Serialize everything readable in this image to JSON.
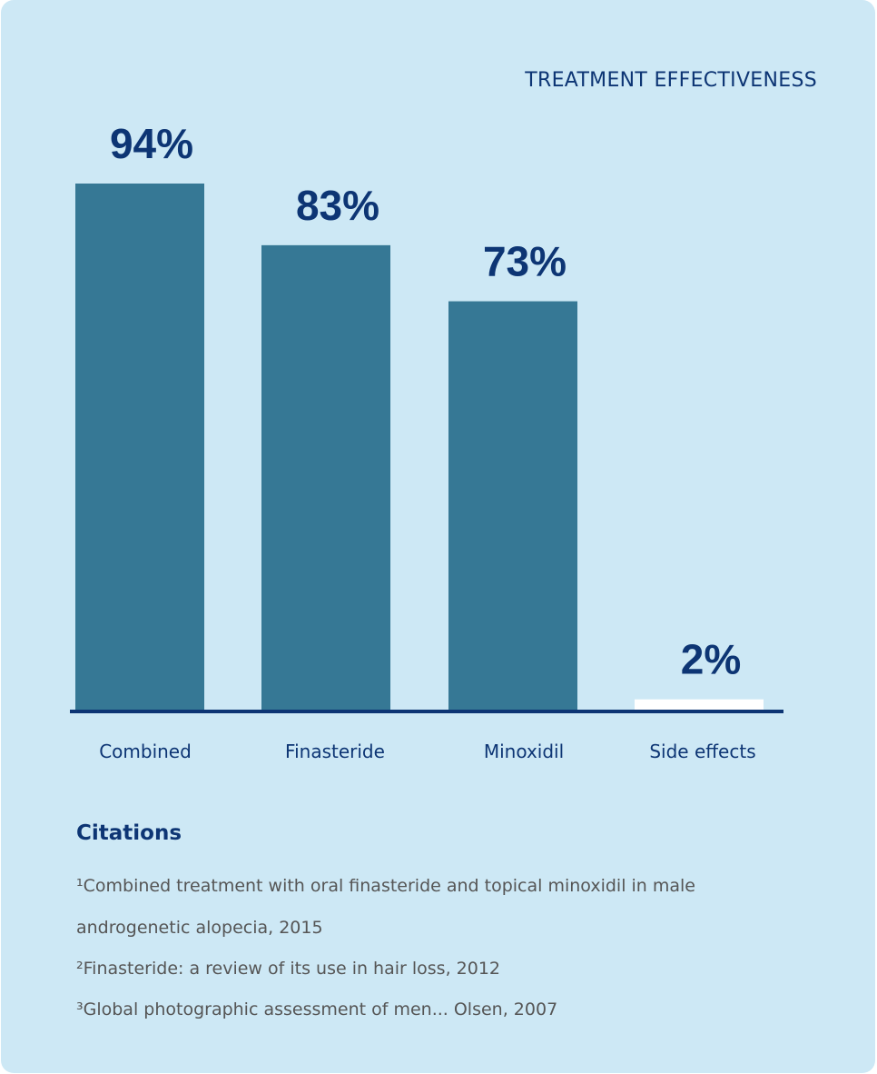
{
  "chart_data": {
    "type": "bar",
    "title": "TREATMENT EFFECTIVENESS",
    "categories": [
      "Combined",
      "Finasteride",
      "Minoxidil",
      "Side effects"
    ],
    "values": [
      94,
      83,
      73,
      2
    ],
    "data_labels": [
      "94%",
      "83%",
      "73%",
      "2%"
    ],
    "xlabel": "",
    "ylabel": "",
    "ylim": [
      0,
      100
    ],
    "grid": false,
    "colors": [
      "#367895",
      "#367895",
      "#367895",
      "#ffffff"
    ],
    "axis_color": "#0d3574",
    "label_color": "#0d3574"
  },
  "citations": {
    "title": "Citations",
    "items": [
      "¹Combined treatment with oral finasteride and topical minoxidil in male",
      "androgenetic alopecia, 2015",
      "²Finasteride: a review of its use in hair loss, 2012",
      "³Global photographic assessment of men... Olsen, 2007"
    ]
  }
}
